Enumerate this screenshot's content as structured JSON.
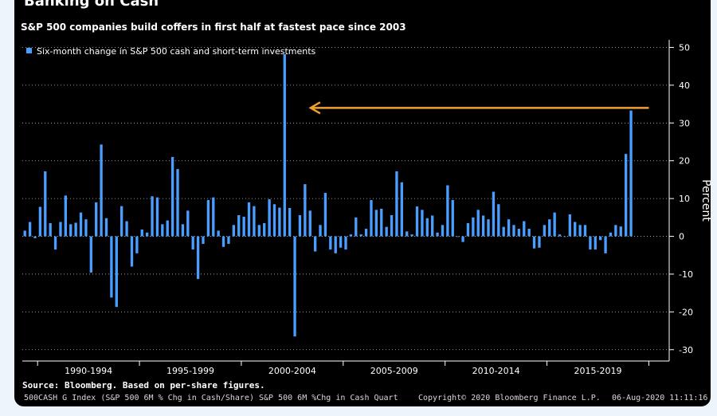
{
  "page": {
    "headline": "Banking on Cash",
    "footer": {
      "source": "Source: Bloomberg. Based on per-share figures.",
      "index": "500CASH G Index (S&P 500 6M % Chg in Cash/Share) S&P 500 6M %Chg in Cash Quart",
      "copyright": "Copyright© 2020 Bloomberg Finance L.P.",
      "date": "06-Aug-2020 11:11:16"
    }
  },
  "colors": {
    "background": "#000000",
    "bar": "#4a9eff",
    "arrow": "#f0a030",
    "grid": "#ffffff",
    "text": "#ffffff"
  },
  "chart_data": {
    "type": "bar",
    "title": "S&P 500 companies build coffers in first half at fastest pace since 2003",
    "ylabel": "Percent",
    "ylim": [
      -33,
      52
    ],
    "yticks": [
      -30,
      -20,
      -10,
      0,
      10,
      20,
      30,
      40,
      50
    ],
    "x_range": [
      1989.25,
      2021.0
    ],
    "xticks": [
      {
        "label": "1990-1994",
        "year": 1992.5
      },
      {
        "label": "1995-1999",
        "year": 1997.5
      },
      {
        "label": "2000-2004",
        "year": 2002.5
      },
      {
        "label": "2005-2009",
        "year": 2007.5
      },
      {
        "label": "2010-2014",
        "year": 2012.5
      },
      {
        "label": "2015-2019",
        "year": 2017.5
      }
    ],
    "x_separators": [
      1990,
      1995,
      2000,
      2005,
      2010,
      2015,
      2020
    ],
    "legend": {
      "position": "top-left"
    },
    "grid": {
      "horizontal": true,
      "style": "dotted"
    },
    "series": [
      {
        "name": "Six-month change in S&P 500 cash and short-term investments",
        "start": "1989Q2",
        "frequency": "quarterly",
        "values": [
          1.5,
          3.8,
          -0.5,
          7.8,
          17.2,
          3.5,
          -3.5,
          3.8,
          10.8,
          3.2,
          3.6,
          6.3,
          4.5,
          -9.6,
          9.0,
          24.3,
          4.8,
          -16.2,
          -18.7,
          8.0,
          4.0,
          -8.0,
          -4.5,
          1.8,
          1.0,
          10.6,
          10.3,
          3.2,
          4.2,
          21.0,
          17.8,
          3.2,
          6.8,
          -3.5,
          -11.3,
          -2.0,
          9.6,
          10.3,
          1.5,
          -2.8,
          -2.0,
          3.0,
          5.6,
          5.2,
          9.0,
          8.0,
          3.0,
          3.5,
          9.8,
          8.5,
          7.6,
          48.2,
          7.5,
          -26.5,
          5.6,
          13.8,
          6.8,
          -4.0,
          3.0,
          11.5,
          -3.5,
          -4.5,
          -3.0,
          -3.5,
          0.5,
          5.0,
          0.5,
          2.0,
          9.6,
          7.0,
          7.3,
          2.5,
          5.6,
          17.2,
          14.3,
          1.3,
          0.5,
          7.9,
          7.0,
          4.8,
          5.5,
          1.0,
          3.0,
          13.5,
          9.6,
          0.0,
          -1.5,
          3.5,
          5.0,
          7.0,
          5.5,
          4.5,
          11.8,
          8.5,
          2.5,
          4.5,
          3.0,
          2.0,
          4.0,
          2.0,
          -3.2,
          -3.0,
          3.0,
          4.5,
          6.3,
          0.5,
          0.0,
          5.8,
          3.8,
          3.0,
          3.0,
          -3.5,
          -3.5,
          -1.0,
          -4.5,
          1.0,
          3.0,
          2.6,
          21.8,
          33.3
        ]
      }
    ],
    "annotations": [
      {
        "type": "arrow",
        "color": "#f0a030",
        "from": {
          "year": 2020.0,
          "value": 34
        },
        "to": {
          "year": 2003.4,
          "value": 34
        }
      }
    ]
  }
}
